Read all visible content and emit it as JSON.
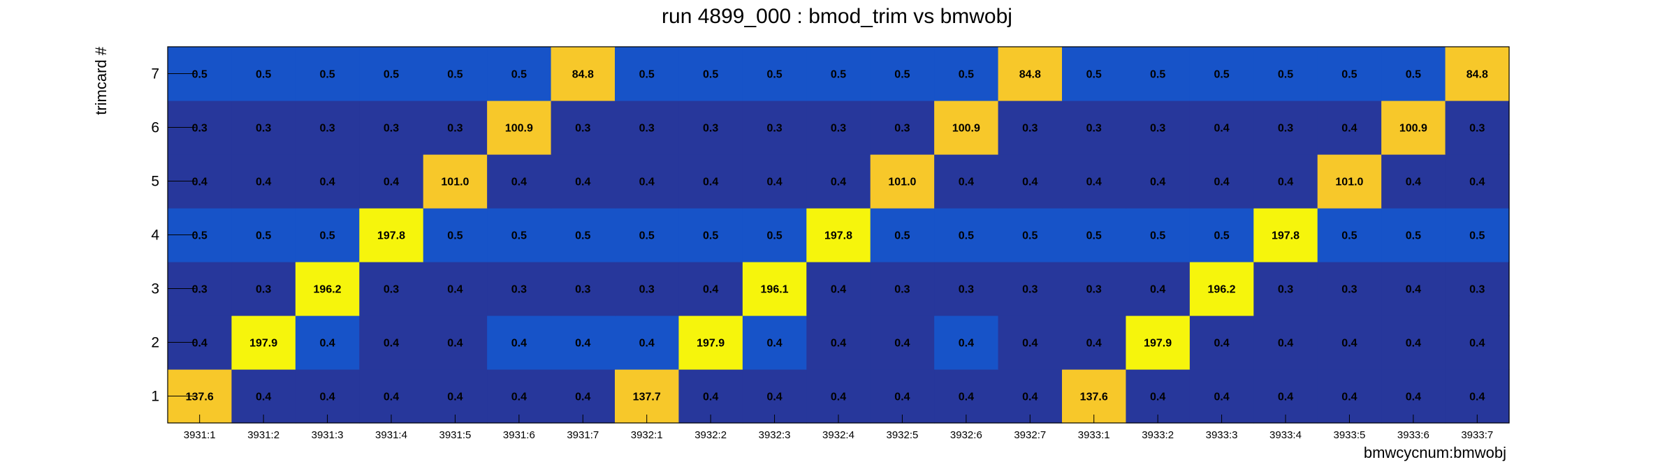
{
  "chart_data": {
    "type": "heatmap",
    "title": "run 4899_000 : bmod_trim vs bmwobj",
    "xlabel": "bmwcycnum:bmwobj",
    "ylabel": "trimcard #",
    "x_categories": [
      "3931:1",
      "3931:2",
      "3931:3",
      "3931:4",
      "3931:5",
      "3931:6",
      "3931:7",
      "3932:1",
      "3932:2",
      "3932:3",
      "3932:4",
      "3932:5",
      "3932:6",
      "3932:7",
      "3933:1",
      "3933:2",
      "3933:3",
      "3933:4",
      "3933:5",
      "3933:6",
      "3933:7"
    ],
    "y_categories": [
      "1",
      "2",
      "3",
      "4",
      "5",
      "6",
      "7"
    ],
    "cells": [
      [
        "137.6",
        "0.4",
        "0.4",
        "0.4",
        "0.4",
        "0.4",
        "0.4",
        "137.7",
        "0.4",
        "0.4",
        "0.4",
        "0.4",
        "0.4",
        "0.4",
        "137.6",
        "0.4",
        "0.4",
        "0.4",
        "0.4",
        "0.4",
        "0.4"
      ],
      [
        "0.4",
        "197.9",
        "0.4",
        "0.4",
        "0.4",
        "0.4",
        "0.4",
        "0.4",
        "197.9",
        "0.4",
        "0.4",
        "0.4",
        "0.4",
        "0.4",
        "0.4",
        "197.9",
        "0.4",
        "0.4",
        "0.4",
        "0.4",
        "0.4"
      ],
      [
        "0.3",
        "0.3",
        "196.2",
        "0.3",
        "0.4",
        "0.3",
        "0.3",
        "0.3",
        "0.4",
        "196.1",
        "0.4",
        "0.3",
        "0.3",
        "0.3",
        "0.3",
        "0.4",
        "196.2",
        "0.3",
        "0.3",
        "0.4",
        "0.3"
      ],
      [
        "0.5",
        "0.5",
        "0.5",
        "197.8",
        "0.5",
        "0.5",
        "0.5",
        "0.5",
        "0.5",
        "0.5",
        "197.8",
        "0.5",
        "0.5",
        "0.5",
        "0.5",
        "0.5",
        "0.5",
        "197.8",
        "0.5",
        "0.5",
        "0.5"
      ],
      [
        "0.4",
        "0.4",
        "0.4",
        "0.4",
        "101.0",
        "0.4",
        "0.4",
        "0.4",
        "0.4",
        "0.4",
        "0.4",
        "101.0",
        "0.4",
        "0.4",
        "0.4",
        "0.4",
        "0.4",
        "0.4",
        "101.0",
        "0.4",
        "0.4"
      ],
      [
        "0.3",
        "0.3",
        "0.3",
        "0.3",
        "0.3",
        "100.9",
        "0.3",
        "0.3",
        "0.3",
        "0.3",
        "0.3",
        "0.3",
        "100.9",
        "0.3",
        "0.3",
        "0.3",
        "0.4",
        "0.3",
        "0.4",
        "100.9",
        "0.3"
      ],
      [
        "0.5",
        "0.5",
        "0.5",
        "0.5",
        "0.5",
        "0.5",
        "84.8",
        "0.5",
        "0.5",
        "0.5",
        "0.5",
        "0.5",
        "0.5",
        "84.8",
        "0.5",
        "0.5",
        "0.5",
        "0.5",
        "0.5",
        "0.5",
        "84.8"
      ]
    ],
    "colors": {
      "low": "#27379b",
      "mid": "#1753c8",
      "high_orange": "#f7c82a",
      "high_yellow": "#f6f50c"
    }
  }
}
